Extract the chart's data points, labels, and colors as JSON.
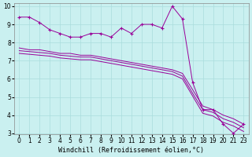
{
  "xlabel": "Windchill (Refroidissement éolien,°C)",
  "background_color": "#caf0f0",
  "line_color": "#990099",
  "grid_color": "#aadddd",
  "x_labels": [
    "0",
    "1",
    "2",
    "3",
    "4",
    "5",
    "6",
    "7",
    "8",
    "9",
    "10",
    "11",
    "12",
    "13",
    "14",
    "15",
    "16",
    "17",
    "18",
    "19",
    "20",
    "21",
    "23"
  ],
  "y_main": [
    9.4,
    9.4,
    9.1,
    8.7,
    8.5,
    8.3,
    8.3,
    8.5,
    8.5,
    8.3,
    8.8,
    8.5,
    9.0,
    9.0,
    8.8,
    10.0,
    9.3,
    5.8,
    4.3,
    4.3,
    3.5,
    3.0,
    3.5
  ],
  "y_upper": [
    7.7,
    7.6,
    7.6,
    7.5,
    7.4,
    7.4,
    7.3,
    7.3,
    7.2,
    7.1,
    7.0,
    6.9,
    6.8,
    6.7,
    6.6,
    6.5,
    6.3,
    5.4,
    4.5,
    4.3,
    4.0,
    3.8,
    3.5
  ],
  "y_mid": [
    7.55,
    7.5,
    7.45,
    7.4,
    7.3,
    7.25,
    7.2,
    7.2,
    7.1,
    7.0,
    6.9,
    6.8,
    6.7,
    6.6,
    6.5,
    6.4,
    6.15,
    5.2,
    4.3,
    4.15,
    3.8,
    3.6,
    3.3
  ],
  "y_lower": [
    7.4,
    7.35,
    7.3,
    7.25,
    7.15,
    7.1,
    7.05,
    7.05,
    6.95,
    6.85,
    6.75,
    6.65,
    6.55,
    6.45,
    6.35,
    6.25,
    6.0,
    5.05,
    4.1,
    3.95,
    3.6,
    3.4,
    3.1
  ],
  "ylim": [
    3,
    10
  ],
  "yticks": [
    3,
    4,
    5,
    6,
    7,
    8,
    9,
    10
  ],
  "tick_fontsize": 5.5,
  "xlabel_fontsize": 6
}
